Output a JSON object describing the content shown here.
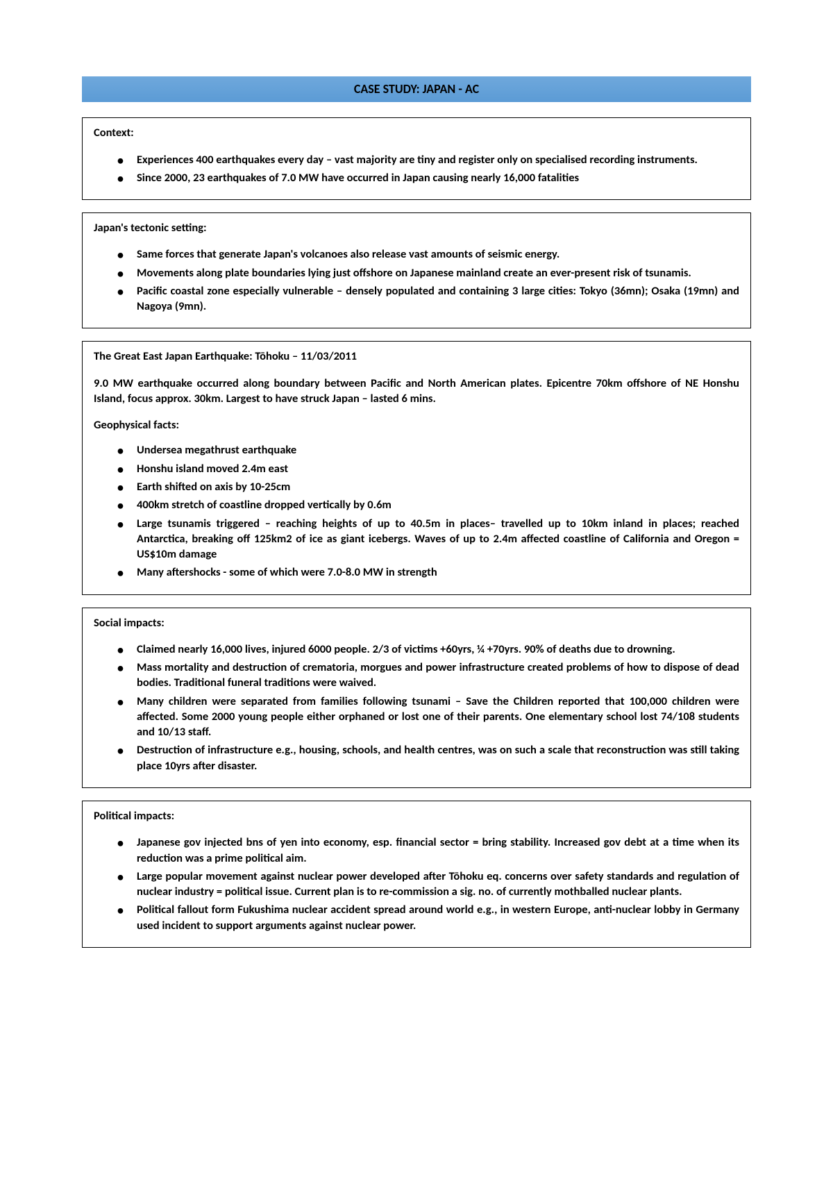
{
  "title": "CASE STUDY: JAPAN - AC",
  "sections": [
    {
      "heading": "Context:",
      "bullets": [
        "Experiences 400 earthquakes every day – vast majority are tiny and register only on specialised recording instruments.",
        "Since 2000, 23 earthquakes of 7.0 MW have occurred in Japan causing nearly 16,000 fatalities"
      ]
    },
    {
      "heading": "Japan's tectonic setting:",
      "bullets": [
        "Same forces that generate Japan's volcanoes also release vast amounts of seismic energy.",
        "Movements along plate boundaries lying just offshore on Japanese mainland create an ever-present risk of tsunamis.",
        "Pacific coastal zone especially vulnerable – densely populated and containing 3 large cities: Tokyo (36mn); Osaka (19mn) and Nagoya (9mn)."
      ]
    },
    {
      "heading": "The Great East Japan Earthquake: Tōhoku – 11/03/2011",
      "para": "9.0 MW earthquake occurred along boundary between Pacific and North American plates. Epicentre 70km offshore of NE Honshu Island, focus approx. 30km. Largest to have struck Japan – lasted 6 mins.",
      "subheading": "Geophysical facts:",
      "bullets": [
        "Undersea megathrust earthquake",
        "Honshu island moved 2.4m east",
        "Earth shifted on axis by 10-25cm",
        "400km stretch of coastline dropped vertically by 0.6m",
        "Large tsunamis triggered – reaching heights of up to 40.5m in places– travelled up to 10km inland in places; reached Antarctica, breaking off 125km2 of ice as giant icebergs. Waves of up to 2.4m affected coastline of California and Oregon = US$10m damage",
        "Many aftershocks - some of which were 7.0-8.0 MW in strength"
      ]
    },
    {
      "heading": "Social impacts:",
      "bullets": [
        "Claimed nearly 16,000 lives, injured 6000 people. 2/3 of victims +60yrs, ¼ +70yrs. 90% of deaths due to drowning.",
        "Mass mortality and destruction of crematoria, morgues and power infrastructure created problems of how to dispose of dead bodies. Traditional funeral traditions were waived.",
        "Many children were separated from families following tsunami – Save the Children reported that 100,000 children were affected. Some 2000 young people either orphaned or lost one of their parents. One elementary school lost 74/108 students and 10/13 staff.",
        "Destruction of infrastructure e.g., housing, schools, and health centres, was on such a scale that reconstruction was still taking place 10yrs after disaster."
      ]
    },
    {
      "heading": "Political impacts:",
      "bullets": [
        "Japanese gov injected bns of yen into economy, esp. financial sector = bring stability. Increased gov debt at a time when its reduction was a prime political aim.",
        "Large popular movement against nuclear power developed after Tōhoku eq. concerns over safety standards and regulation of nuclear industry = political issue. Current plan is to re-commission a sig. no. of currently mothballed nuclear plants.",
        "Political fallout form Fukushima nuclear accident spread around world e.g., in western Europe, anti-nuclear lobby in Germany used incident to support arguments against nuclear power."
      ]
    }
  ]
}
